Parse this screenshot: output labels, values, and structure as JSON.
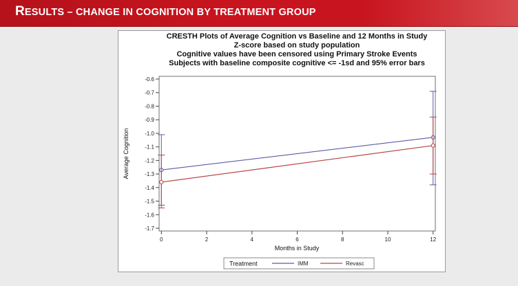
{
  "slide": {
    "title_first": "R",
    "title_rest": "ESULTS",
    "title_dash": " – ",
    "title_tail": "CHANGE IN COGNITION BY TREATMENT GROUP"
  },
  "colors": {
    "header": "#c8141e",
    "imm": "#5a5aa8",
    "revasc": "#b84444"
  },
  "chart_data": {
    "type": "line",
    "title": [
      "CRESTH Plots of Average Cognition vs Baseline and 12 Months in Study",
      "Z-score based on study population",
      "Cognitive values have been censored using Primary Stroke Events",
      "Subjects with baseline composite cognitive <= -1sd and 95% error bars"
    ],
    "xlabel": "Months in Study",
    "ylabel": "Average Cognition",
    "xlim": [
      0,
      12
    ],
    "ylim": [
      -1.7,
      -0.6
    ],
    "xticks": [
      0,
      2,
      4,
      6,
      8,
      10,
      12
    ],
    "yticks": [
      -0.6,
      -0.7,
      -0.8,
      -0.9,
      -1.0,
      -1.1,
      -1.2,
      -1.3,
      -1.4,
      -1.5,
      -1.6,
      -1.7
    ],
    "ytick_labels": [
      "-0.6",
      "-0.7",
      "-0.8",
      "-0.9",
      "-1.0",
      "-1.1",
      "-1.2",
      "-1.3",
      "-1.4",
      "-1.5",
      "-1.6",
      "-1.7"
    ],
    "grid": false,
    "legend_title": "Treatment",
    "legend_position": "bottom",
    "series": [
      {
        "name": "IMM",
        "color": "#5a5aa8",
        "points": [
          {
            "x": 0,
            "y": -1.27,
            "lo": -1.53,
            "hi": -1.01
          },
          {
            "x": 12,
            "y": -1.03,
            "lo": -1.38,
            "hi": -0.69
          }
        ]
      },
      {
        "name": "Revasc",
        "color": "#b84444",
        "points": [
          {
            "x": 0,
            "y": -1.36,
            "lo": -1.55,
            "hi": -1.16
          },
          {
            "x": 12,
            "y": -1.09,
            "lo": -1.3,
            "hi": -0.88
          }
        ]
      }
    ]
  }
}
